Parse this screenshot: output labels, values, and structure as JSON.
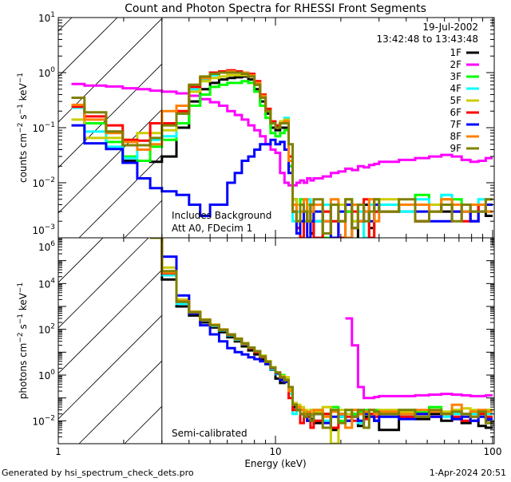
{
  "chart_data": [
    {
      "type": "line",
      "panel": "counts",
      "title": "Count and Photon Spectra for RHESSI Front Segments",
      "xlabel": "Energy (keV)",
      "ylabel_parts": [
        "counts cm",
        "−2",
        " s",
        "−1",
        " keV",
        "−1"
      ],
      "xscale": "log",
      "yscale": "log",
      "xlim": [
        1,
        100
      ],
      "ylim": [
        0.001,
        10
      ],
      "ytick_exponents": [
        "1",
        "0",
        "−1",
        "−2",
        "−3"
      ],
      "annotations": [
        "Includes Background",
        "Att A0, FDecim 1"
      ],
      "date": "19-Jul-2002",
      "time_range": "13:42:48 to 13:43:48",
      "legend_position": "top-right"
    },
    {
      "type": "line",
      "panel": "photons",
      "xlabel": "Energy (keV)",
      "ylabel_parts": [
        "photons cm",
        "−2",
        " s",
        "−1",
        " keV",
        "−1"
      ],
      "xscale": "log",
      "yscale": "log",
      "xlim": [
        1,
        100
      ],
      "ylim": [
        0.001,
        1000000
      ],
      "ytick_exponents": [
        "6",
        "4",
        "2",
        "0",
        "−2"
      ],
      "annotations": [
        "Semi-calibrated"
      ]
    }
  ],
  "xtick_labels": [
    "1",
    "10",
    "100"
  ],
  "threshold_energy_keV": 3,
  "energy_edges_keV": [
    1.15,
    1.32,
    1.66,
    1.98,
    2.31,
    2.65,
    3.0,
    3.5,
    4,
    4.5,
    5,
    5.5,
    6,
    6.5,
    7,
    7.5,
    8,
    8.5,
    9,
    9.5,
    10,
    10.5,
    11,
    11.5,
    12,
    12.5,
    13,
    13.5,
    14,
    14.5,
    15,
    16.5,
    18,
    19.5,
    21,
    22.5,
    24,
    25.5,
    27,
    28.5,
    30,
    37,
    44,
    51,
    58,
    65,
    72,
    79,
    86,
    93,
    100
  ],
  "series": [
    {
      "name": "1F",
      "color": "#000000",
      "counts": [
        0.25,
        0.12,
        0.085,
        0.025,
        0.025,
        0.024,
        0.03,
        0.1,
        0.3,
        0.5,
        0.65,
        0.75,
        0.8,
        0.82,
        0.85,
        0.75,
        0.5,
        0.3,
        0.18,
        0.1,
        0.09,
        0.1,
        0.1,
        0.02,
        0.005,
        0.004,
        0.003,
        0.002,
        0.004,
        0.0012,
        0.002,
        0.003,
        0.001,
        0.002,
        0.003,
        0.0008,
        0.002,
        0.004,
        0.0015,
        0.003,
        0.004,
        0.003,
        0.002,
        0.004,
        0.003,
        0.004,
        0.003,
        0.002,
        0.004,
        0.0025
      ],
      "photons": [
        null,
        null,
        null,
        null,
        null,
        1000000.0,
        15000.0,
        1000,
        400,
        200,
        120,
        75,
        45,
        30,
        18,
        12,
        8,
        5,
        3,
        1.7,
        0.7,
        0.45,
        0.5,
        0.15,
        0.04,
        0.03,
        0.02,
        0.015,
        0.01,
        0.012,
        0.008,
        0.02,
        0.004,
        0.015,
        0.01,
        0.02,
        0.006,
        0.015,
        0.02,
        0.01,
        0.004,
        0.015,
        0.012,
        0.02,
        0.01,
        0.012,
        0.008,
        0.01,
        0.006,
        0.005
      ]
    },
    {
      "name": "2F",
      "color": "#ff00ff",
      "counts": [
        0.62,
        0.58,
        0.56,
        0.52,
        0.5,
        0.47,
        0.45,
        0.42,
        0.38,
        0.33,
        0.29,
        0.25,
        0.2,
        0.17,
        0.14,
        0.11,
        0.09,
        0.07,
        0.05,
        0.04,
        0.035,
        0.015,
        0.01,
        0.009,
        0.009,
        0.01,
        0.011,
        0.01,
        0.012,
        0.011,
        0.012,
        0.013,
        0.015,
        0.016,
        0.018,
        0.017,
        0.02,
        0.019,
        0.021,
        0.022,
        0.024,
        0.026,
        0.028,
        0.03,
        0.032,
        0.03,
        0.026,
        0.024,
        0.025,
        0.028
      ],
      "photons": [
        null,
        null,
        null,
        null,
        null,
        null,
        null,
        null,
        null,
        null,
        null,
        null,
        null,
        null,
        null,
        null,
        null,
        null,
        null,
        null,
        null,
        null,
        null,
        null,
        null,
        null,
        null,
        null,
        null,
        null,
        null,
        null,
        null,
        null,
        300,
        20,
        0.3,
        0.1,
        0.1,
        0.11,
        0.12,
        0.12,
        0.13,
        0.14,
        0.15,
        0.14,
        0.13,
        0.12,
        0.12,
        0.13
      ]
    },
    {
      "name": "3F",
      "color": "#00ff00",
      "counts": [
        0.24,
        0.12,
        0.055,
        0.03,
        0.025,
        0.045,
        0.06,
        0.12,
        0.25,
        0.4,
        0.55,
        0.6,
        0.65,
        0.65,
        0.7,
        0.65,
        0.45,
        0.25,
        0.15,
        0.08,
        0.07,
        0.08,
        0.09,
        0.02,
        0.004,
        0.003,
        0.005,
        0.002,
        0.004,
        0.002,
        0.003,
        0.001,
        0.004,
        0.002,
        0.003,
        0.002,
        0.004,
        0.001,
        0.003,
        0.005,
        0.003,
        0.004,
        0.006,
        0.003,
        0.004,
        0.005,
        0.004,
        0.003,
        0.004,
        0.003
      ],
      "photons": [
        null,
        null,
        null,
        null,
        null,
        1000000.0,
        25000.0,
        1800,
        550,
        260,
        150,
        95,
        60,
        38,
        24,
        16,
        11,
        7,
        4,
        2.2,
        1.3,
        1.0,
        0.7,
        0.2,
        0.06,
        0.04,
        0.03,
        0.025,
        0.02,
        0.03,
        0.03,
        0.02,
        0.04,
        0.01,
        0.03,
        0.02,
        0.025,
        0.03,
        0.02,
        0.03,
        0.02,
        0.03,
        0.025,
        0.04,
        0.02,
        0.03,
        0.02,
        0.025,
        0.02,
        0.03
      ]
    },
    {
      "name": "4F",
      "color": "#00ffff",
      "counts": [
        0.23,
        0.085,
        0.045,
        0.028,
        0.04,
        0.06,
        0.07,
        0.18,
        0.5,
        0.75,
        0.9,
        1.0,
        1.0,
        1.0,
        1.0,
        0.9,
        0.6,
        0.35,
        0.2,
        0.12,
        0.1,
        0.12,
        0.15,
        0.03,
        0.002,
        0.003,
        0.004,
        0.003,
        0.005,
        0.002,
        0.002,
        0.004,
        0.002,
        0.003,
        0.005,
        0.002,
        0.003,
        0.001,
        0.004,
        0.003,
        0.004,
        0.003,
        0.005,
        0.003,
        0.006,
        0.004,
        0.003,
        0.004,
        0.005,
        0.004
      ],
      "photons": [
        null,
        null,
        null,
        null,
        null,
        1000000.0,
        23000.0,
        1300,
        500,
        240,
        140,
        90,
        55,
        35,
        22,
        15,
        10,
        6,
        3.5,
        1.8,
        1.1,
        0.6,
        0.6,
        0.15,
        0.02,
        0.03,
        0.02,
        0.015,
        0.02,
        0.018,
        0.02,
        0.01,
        0.03,
        0.015,
        0.02,
        0.01,
        0.008,
        0.02,
        0.015,
        0.02,
        0.015,
        0.02,
        0.02,
        0.025,
        0.015,
        0.02,
        0.02,
        0.02,
        0.015,
        0.02
      ]
    },
    {
      "name": "5F",
      "color": "#cccc00",
      "counts": [
        0.14,
        0.065,
        0.065,
        0.06,
        0.08,
        0.08,
        0.09,
        0.2,
        0.45,
        0.7,
        0.8,
        0.85,
        0.9,
        0.9,
        0.9,
        0.85,
        0.6,
        0.35,
        0.2,
        0.12,
        0.1,
        0.13,
        0.14,
        0.03,
        0.005,
        0.004,
        0.004,
        0.005,
        0.003,
        0.002,
        0.004,
        0.003,
        0.001,
        0.004,
        0.005,
        0.002,
        0.004,
        0.003,
        0.0008,
        0.004,
        0.005,
        0.004,
        0.003,
        0.004,
        0.005,
        0.003,
        0.004,
        0.004,
        0.003,
        0.005
      ],
      "photons": [
        null,
        null,
        null,
        null,
        null,
        1000000.0,
        50000.0,
        2000,
        600,
        270,
        160,
        100,
        60,
        40,
        25,
        16,
        11,
        7,
        4,
        2.2,
        1.3,
        0.9,
        0.8,
        0.25,
        0.06,
        0.05,
        0.04,
        0.03,
        0.02,
        0.03,
        0.025,
        0.04,
        0.001,
        0.03,
        0.02,
        0.03,
        0.02,
        0.025,
        0.03,
        0.02,
        0.03,
        0.025,
        0.02,
        0.03,
        0.025,
        0.03,
        0.035,
        0.03,
        0.025,
        0.03
      ]
    },
    {
      "name": "6F",
      "color": "#ff0000",
      "counts": [
        0.24,
        0.16,
        0.11,
        0.06,
        0.058,
        0.12,
        0.12,
        0.2,
        0.55,
        0.8,
        1.0,
        1.05,
        1.1,
        1.05,
        1.0,
        0.95,
        0.7,
        0.4,
        0.22,
        0.13,
        0.11,
        0.12,
        0.13,
        0.03,
        0.003,
        0.0015,
        0.001,
        0.003,
        0.002,
        0.004,
        0.001,
        0.003,
        0.002,
        0.001,
        0.004,
        0.003,
        0.002,
        0.005,
        0.001,
        0.003,
        0.003,
        0.004,
        0.002,
        0.003,
        0.004,
        0.003,
        0.002,
        0.003,
        0.004,
        0.003
      ],
      "photons": [
        null,
        null,
        null,
        null,
        null,
        1000000.0,
        28000.0,
        1600,
        550,
        250,
        150,
        95,
        58,
        38,
        23,
        15,
        10,
        6,
        3.5,
        2,
        1.2,
        0.7,
        0.55,
        0.1,
        0.03,
        0.03,
        0.008,
        0.02,
        0.015,
        0.005,
        0.01,
        0.02,
        0.005,
        0.02,
        0.015,
        0.01,
        0.02,
        0.012,
        0.02,
        0.015,
        0.02,
        0.015,
        0.02,
        0.015,
        0.02,
        0.015,
        0.01,
        0.015,
        0.02,
        0.015
      ]
    },
    {
      "name": "7F",
      "color": "#0000ff",
      "counts": [
        0.11,
        0.052,
        0.041,
        0.023,
        0.012,
        0.008,
        0.007,
        0.006,
        0.004,
        0.0025,
        0.004,
        0.004,
        0.01,
        0.015,
        0.025,
        0.03,
        0.04,
        0.05,
        0.05,
        0.06,
        0.05,
        0.055,
        0.04,
        0.015,
        0.003,
        0.0012,
        0.002,
        0.003,
        0.001,
        0.002,
        0.003,
        0.002,
        0.001,
        0.003,
        0.004,
        0.0015,
        0.002,
        0.003,
        0.002,
        0.004,
        0.003,
        0.004,
        0.003,
        0.002,
        0.002,
        0.003,
        0.003,
        0.002,
        0.003,
        0.004
      ],
      "photons": [
        null,
        null,
        null,
        null,
        null,
        1000000.0,
        150000.0,
        3000,
        500,
        150,
        60,
        30,
        15,
        10,
        8,
        6,
        5,
        4,
        3,
        2,
        1.2,
        0.6,
        0.5,
        0.3,
        0.05,
        0.03,
        0.02,
        0.015,
        0.01,
        0.02,
        0.02,
        0.008,
        0.015,
        0.02,
        0.01,
        0.015,
        0.01,
        0.02,
        0.015,
        0.01,
        0.015,
        0.012,
        0.02,
        0.015,
        0.02,
        0.012,
        0.015,
        0.01,
        0.015,
        0.012
      ]
    },
    {
      "name": "8F",
      "color": "#ff8000",
      "counts": [
        0.26,
        0.14,
        0.08,
        0.055,
        0.04,
        0.05,
        0.2,
        0.25,
        0.6,
        0.8,
        0.95,
        1.0,
        1.05,
        1.0,
        1.0,
        0.9,
        0.65,
        0.38,
        0.2,
        0.12,
        0.1,
        0.12,
        0.13,
        0.025,
        0.004,
        0.002,
        0.003,
        0.005,
        0.002,
        0.003,
        0.004,
        0.002,
        0.005,
        0.002,
        0.001,
        0.004,
        0.002,
        0.003,
        0.005,
        0.002,
        0.003,
        0.004,
        0.004,
        0.003,
        0.005,
        0.004,
        0.003,
        0.004,
        0.004,
        0.003
      ],
      "photons": [
        null,
        null,
        null,
        null,
        null,
        1000000.0,
        30000.0,
        1700,
        560,
        260,
        155,
        95,
        60,
        38,
        24,
        16,
        11,
        6.5,
        3.8,
        2.1,
        1.3,
        0.8,
        0.6,
        0.2,
        0.05,
        0.04,
        0.03,
        0.02,
        0.025,
        0.02,
        0.03,
        0.015,
        0.025,
        0.02,
        0.005,
        0.03,
        0.02,
        0.025,
        0.03,
        0.02,
        0.025,
        0.02,
        0.03,
        0.025,
        0.02,
        0.05,
        0.02,
        0.025,
        0.03,
        0.025
      ]
    },
    {
      "name": "9F",
      "color": "#808000",
      "counts": [
        0.35,
        0.19,
        0.085,
        0.048,
        0.048,
        0.065,
        0.11,
        0.18,
        0.6,
        0.85,
        0.95,
        1.0,
        1.0,
        1.0,
        0.95,
        0.85,
        0.6,
        0.35,
        0.2,
        0.12,
        0.1,
        0.12,
        0.12,
        0.05,
        0.003,
        0.002,
        0.004,
        0.003,
        0.002,
        0.004,
        0.005,
        0.0012,
        0.004,
        0.002,
        0.005,
        0.0015,
        0.004,
        0.002,
        0.003,
        0.005,
        0.003,
        0.005,
        0.002,
        0.003,
        0.004,
        0.002,
        0.004,
        0.003,
        0.003,
        0.005
      ],
      "photons": [
        null,
        null,
        null,
        null,
        null,
        1000000.0,
        35000.0,
        1600,
        560,
        260,
        150,
        95,
        60,
        38,
        24,
        16,
        11,
        6.5,
        3.8,
        2.1,
        1.3,
        0.8,
        0.6,
        0.3,
        0.05,
        0.03,
        0.02,
        0.015,
        0.02,
        0.01,
        0.02,
        0.005,
        0.03,
        0.008,
        0.03,
        0.015,
        0.03,
        0.005,
        0.03,
        0.025,
        0.02,
        0.03,
        0.015,
        0.03,
        0.02,
        0.025,
        0.02,
        0.015,
        0.025,
        0.008
      ]
    }
  ],
  "footer": {
    "generated_by": "Generated by hsi_spectrum_check_dets.pro",
    "timestamp": "1-Apr-2024 20:51"
  }
}
